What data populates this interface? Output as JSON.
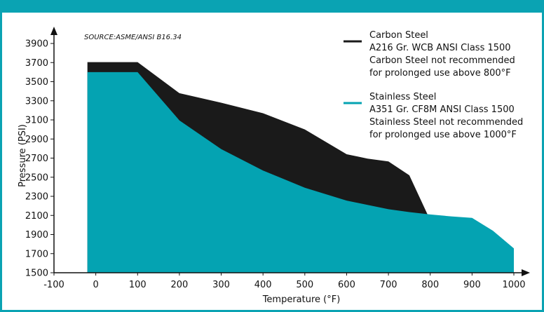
{
  "chart_data": {
    "type": "area",
    "source_note": "SOURCE:ASME/ANSI B16.34",
    "xlabel": "Temperature (°F)",
    "ylabel": "Pressure (PSI)",
    "xlim": [
      -100,
      1000
    ],
    "ylim": [
      1500,
      3900
    ],
    "x_ticks": [
      "-100",
      "0",
      "100",
      "200",
      "300",
      "400",
      "500",
      "600",
      "700",
      "800",
      "900",
      "1000"
    ],
    "y_ticks": [
      "1500",
      "1700",
      "1900",
      "2100",
      "2300",
      "2500",
      "2700",
      "2900",
      "3100",
      "3300",
      "3500",
      "3700",
      "3900"
    ],
    "grid": false,
    "legend_position": "top-right",
    "colors": {
      "frame": "#0aa3b3",
      "carbon": "#1a1a1a",
      "stainless": "#04a3b2"
    },
    "series": [
      {
        "name": "Carbon Steel",
        "legend_lines": [
          "Carbon Steel",
          "A216 Gr. WCB ANSI Class 1500",
          "Carbon Steel not recommended",
          "for prolonged use above 800°F"
        ],
        "points": [
          [
            -20,
            3705
          ],
          [
            100,
            3705
          ],
          [
            200,
            3380
          ],
          [
            300,
            3280
          ],
          [
            400,
            3170
          ],
          [
            500,
            3000
          ],
          [
            600,
            2740
          ],
          [
            650,
            2695
          ],
          [
            700,
            2665
          ],
          [
            750,
            2520
          ],
          [
            800,
            2050
          ]
        ]
      },
      {
        "name": "Stainless Steel",
        "legend_lines": [
          "Stainless Steel",
          "A351 Gr. CF8M ANSI Class 1500",
          "Stainless Steel not recommended",
          "for prolonged use above 1000°F"
        ],
        "points": [
          [
            -20,
            3600
          ],
          [
            100,
            3600
          ],
          [
            200,
            3095
          ],
          [
            300,
            2795
          ],
          [
            400,
            2570
          ],
          [
            500,
            2390
          ],
          [
            600,
            2255
          ],
          [
            650,
            2210
          ],
          [
            700,
            2165
          ],
          [
            750,
            2135
          ],
          [
            800,
            2110
          ],
          [
            850,
            2090
          ],
          [
            900,
            2075
          ],
          [
            950,
            1940
          ],
          [
            1000,
            1755
          ]
        ]
      }
    ]
  }
}
